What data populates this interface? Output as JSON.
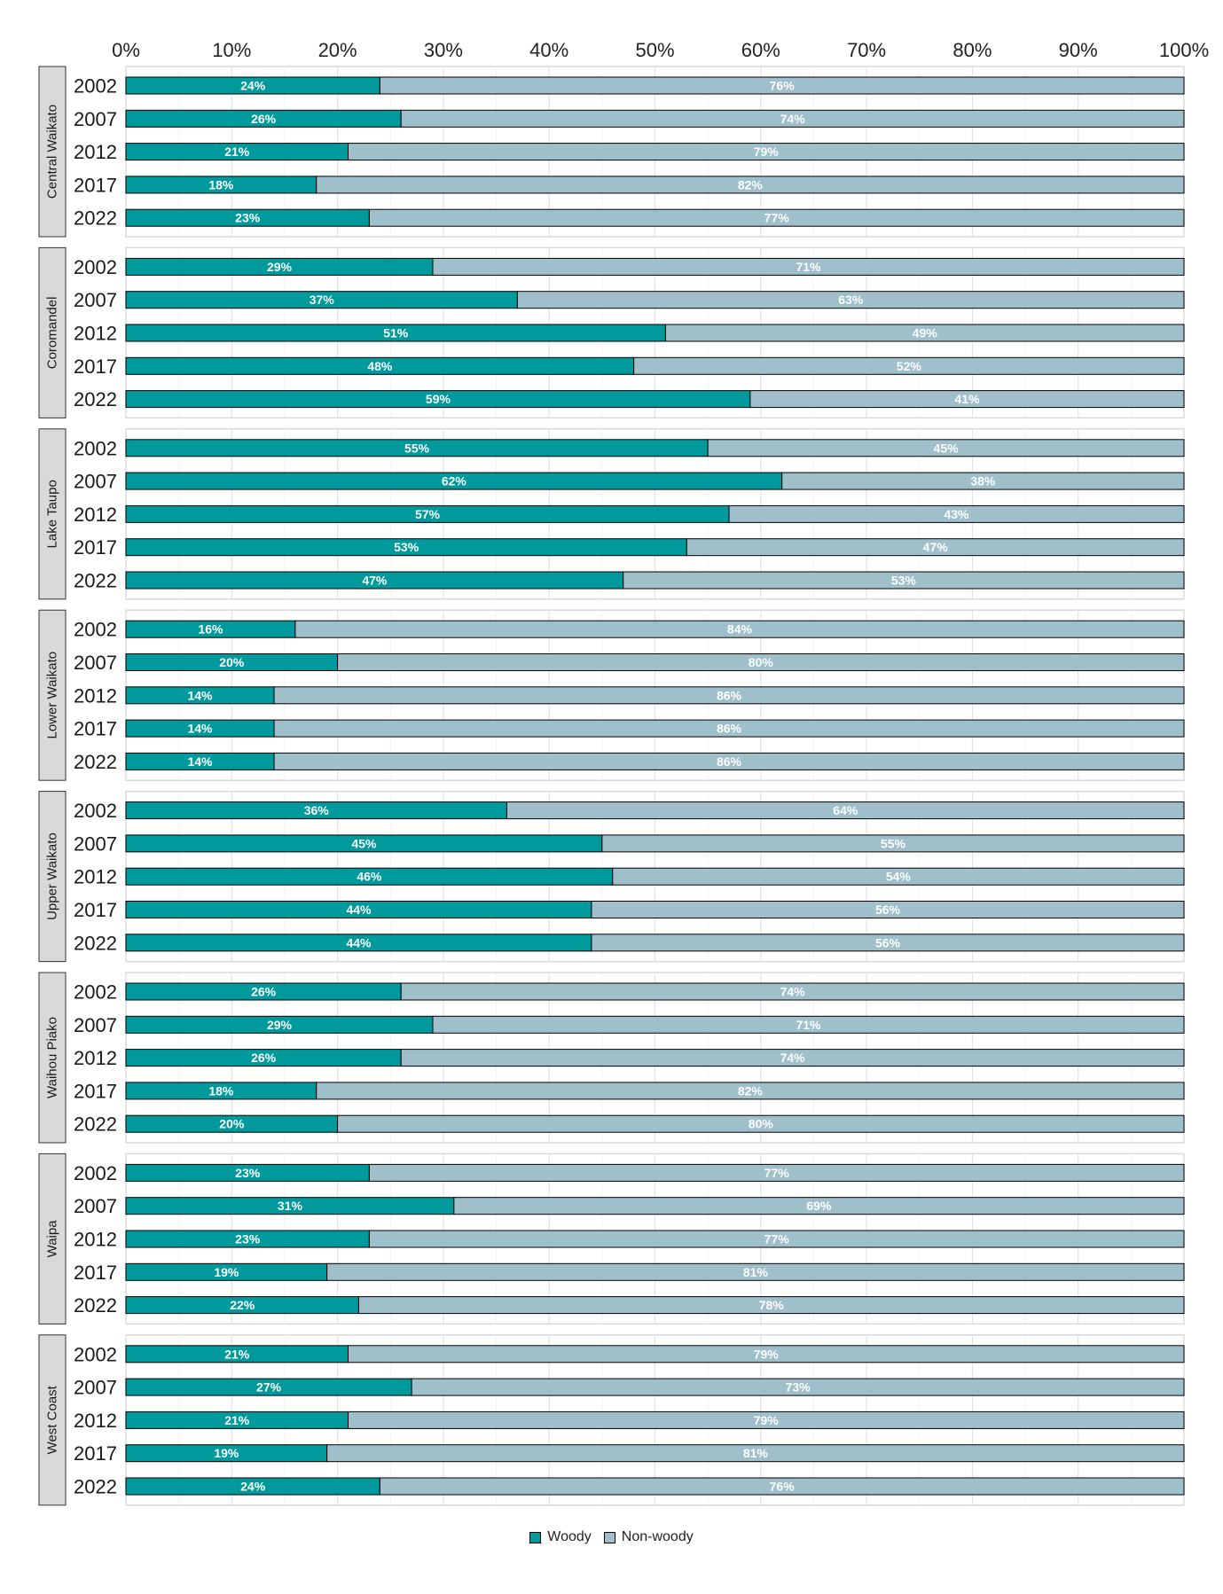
{
  "chart_data": {
    "type": "bar",
    "orientation": "horizontal",
    "stacked": true,
    "xlim": [
      0,
      100
    ],
    "x_ticks": [
      "0%",
      "10%",
      "20%",
      "30%",
      "40%",
      "50%",
      "60%",
      "70%",
      "80%",
      "90%",
      "100%"
    ],
    "grid": true,
    "legend_position": "bottom",
    "series": [
      {
        "name": "Woody",
        "color": "#00999c"
      },
      {
        "name": "Non-woody",
        "color": "#9fbfcb"
      }
    ],
    "facets": [
      {
        "name": "Central Waikato",
        "rows": [
          {
            "year": "2002",
            "woody": 24,
            "nonwoody": 76,
            "woody_label": "24%",
            "nonwoody_label": "76%"
          },
          {
            "year": "2007",
            "woody": 26,
            "nonwoody": 74,
            "woody_label": "26%",
            "nonwoody_label": "74%"
          },
          {
            "year": "2012",
            "woody": 21,
            "nonwoody": 79,
            "woody_label": "21%",
            "nonwoody_label": "79%"
          },
          {
            "year": "2017",
            "woody": 18,
            "nonwoody": 82,
            "woody_label": "18%",
            "nonwoody_label": "82%"
          },
          {
            "year": "2022",
            "woody": 23,
            "nonwoody": 77,
            "woody_label": "23%",
            "nonwoody_label": "77%"
          }
        ]
      },
      {
        "name": "Coromandel",
        "rows": [
          {
            "year": "2002",
            "woody": 29,
            "nonwoody": 71,
            "woody_label": "29%",
            "nonwoody_label": "71%"
          },
          {
            "year": "2007",
            "woody": 37,
            "nonwoody": 63,
            "woody_label": "37%",
            "nonwoody_label": "63%"
          },
          {
            "year": "2012",
            "woody": 51,
            "nonwoody": 49,
            "woody_label": "51%",
            "nonwoody_label": "49%"
          },
          {
            "year": "2017",
            "woody": 48,
            "nonwoody": 52,
            "woody_label": "48%",
            "nonwoody_label": "52%"
          },
          {
            "year": "2022",
            "woody": 59,
            "nonwoody": 41,
            "woody_label": "59%",
            "nonwoody_label": "41%"
          }
        ]
      },
      {
        "name": "Lake Taupo",
        "rows": [
          {
            "year": "2002",
            "woody": 55,
            "nonwoody": 45,
            "woody_label": "55%",
            "nonwoody_label": "45%"
          },
          {
            "year": "2007",
            "woody": 62,
            "nonwoody": 38,
            "woody_label": "62%",
            "nonwoody_label": "38%"
          },
          {
            "year": "2012",
            "woody": 57,
            "nonwoody": 43,
            "woody_label": "57%",
            "nonwoody_label": "43%"
          },
          {
            "year": "2017",
            "woody": 53,
            "nonwoody": 47,
            "woody_label": "53%",
            "nonwoody_label": "47%"
          },
          {
            "year": "2022",
            "woody": 47,
            "nonwoody": 53,
            "woody_label": "47%",
            "nonwoody_label": "53%"
          }
        ]
      },
      {
        "name": "Lower Waikato",
        "rows": [
          {
            "year": "2002",
            "woody": 16,
            "nonwoody": 84,
            "woody_label": "16%",
            "nonwoody_label": "84%"
          },
          {
            "year": "2007",
            "woody": 20,
            "nonwoody": 80,
            "woody_label": "20%",
            "nonwoody_label": "80%"
          },
          {
            "year": "2012",
            "woody": 14,
            "nonwoody": 86,
            "woody_label": "14%",
            "nonwoody_label": "86%"
          },
          {
            "year": "2017",
            "woody": 14,
            "nonwoody": 86,
            "woody_label": "14%",
            "nonwoody_label": "86%"
          },
          {
            "year": "2022",
            "woody": 14,
            "nonwoody": 86,
            "woody_label": "14%",
            "nonwoody_label": "86%"
          }
        ]
      },
      {
        "name": "Upper Waikato",
        "rows": [
          {
            "year": "2002",
            "woody": 36,
            "nonwoody": 64,
            "woody_label": "36%",
            "nonwoody_label": "64%"
          },
          {
            "year": "2007",
            "woody": 45,
            "nonwoody": 55,
            "woody_label": "45%",
            "nonwoody_label": "55%"
          },
          {
            "year": "2012",
            "woody": 46,
            "nonwoody": 54,
            "woody_label": "46%",
            "nonwoody_label": "54%"
          },
          {
            "year": "2017",
            "woody": 44,
            "nonwoody": 56,
            "woody_label": "44%",
            "nonwoody_label": "56%"
          },
          {
            "year": "2022",
            "woody": 44,
            "nonwoody": 56,
            "woody_label": "44%",
            "nonwoody_label": "56%"
          }
        ]
      },
      {
        "name": "Waihou Piako",
        "rows": [
          {
            "year": "2002",
            "woody": 26,
            "nonwoody": 74,
            "woody_label": "26%",
            "nonwoody_label": "74%"
          },
          {
            "year": "2007",
            "woody": 29,
            "nonwoody": 71,
            "woody_label": "29%",
            "nonwoody_label": "71%"
          },
          {
            "year": "2012",
            "woody": 26,
            "nonwoody": 74,
            "woody_label": "26%",
            "nonwoody_label": "74%"
          },
          {
            "year": "2017",
            "woody": 18,
            "nonwoody": 82,
            "woody_label": "18%",
            "nonwoody_label": "82%"
          },
          {
            "year": "2022",
            "woody": 20,
            "nonwoody": 80,
            "woody_label": "20%",
            "nonwoody_label": "80%"
          }
        ]
      },
      {
        "name": "Waipa",
        "rows": [
          {
            "year": "2002",
            "woody": 23,
            "nonwoody": 77,
            "woody_label": "23%",
            "nonwoody_label": "77%"
          },
          {
            "year": "2007",
            "woody": 31,
            "nonwoody": 69,
            "woody_label": "31%",
            "nonwoody_label": "69%"
          },
          {
            "year": "2012",
            "woody": 23,
            "nonwoody": 77,
            "woody_label": "23%",
            "nonwoody_label": "77%"
          },
          {
            "year": "2017",
            "woody": 19,
            "nonwoody": 81,
            "woody_label": "19%",
            "nonwoody_label": "81%"
          },
          {
            "year": "2022",
            "woody": 22,
            "nonwoody": 78,
            "woody_label": "22%",
            "nonwoody_label": "78%"
          }
        ]
      },
      {
        "name": "West Coast",
        "rows": [
          {
            "year": "2002",
            "woody": 21,
            "nonwoody": 79,
            "woody_label": "21%",
            "nonwoody_label": "79%"
          },
          {
            "year": "2007",
            "woody": 27,
            "nonwoody": 73,
            "woody_label": "27%",
            "nonwoody_label": "73%"
          },
          {
            "year": "2012",
            "woody": 21,
            "nonwoody": 79,
            "woody_label": "21%",
            "nonwoody_label": "79%"
          },
          {
            "year": "2017",
            "woody": 19,
            "nonwoody": 81,
            "woody_label": "19%",
            "nonwoody_label": "81%"
          },
          {
            "year": "2022",
            "woody": 24,
            "nonwoody": 76,
            "woody_label": "24%",
            "nonwoody_label": "76%"
          }
        ]
      }
    ]
  }
}
